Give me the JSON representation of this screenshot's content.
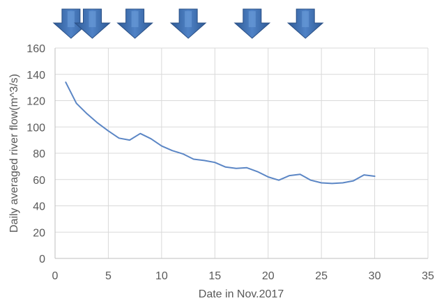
{
  "chart_data": {
    "type": "line",
    "title": "",
    "xlabel": "Date in Nov.2017",
    "ylabel": "Daily averaged river flow(m^3/s)",
    "xlim": [
      0,
      35
    ],
    "ylim": [
      0,
      160
    ],
    "x_ticks": [
      0,
      5,
      10,
      15,
      20,
      25,
      30,
      35
    ],
    "y_ticks": [
      0,
      20,
      40,
      60,
      80,
      100,
      120,
      140,
      160
    ],
    "grid": true,
    "legend": "none",
    "series": [
      {
        "color": "#5b86c5",
        "x": [
          1,
          2,
          3,
          4,
          5,
          6,
          7,
          8,
          9,
          10,
          11,
          12,
          13,
          14,
          15,
          16,
          17,
          18,
          19,
          20,
          21,
          22,
          23,
          24,
          25,
          26,
          27,
          28,
          29,
          30
        ],
        "values": [
          134,
          118,
          110,
          103,
          97,
          91.5,
          90,
          95,
          91,
          85.5,
          82,
          79.5,
          75.5,
          74.5,
          73,
          69.5,
          68.5,
          69,
          66,
          62,
          59.5,
          63,
          64,
          59.5,
          57.5,
          57,
          57.5,
          59,
          63.5,
          62.5
        ]
      }
    ],
    "annotations": {
      "markers": {
        "icon": "down-arrow-icon",
        "color": "#4a77b9",
        "dates": [
          1.5,
          3.5,
          7.5,
          12.5,
          18.5,
          23.5
        ]
      }
    }
  }
}
